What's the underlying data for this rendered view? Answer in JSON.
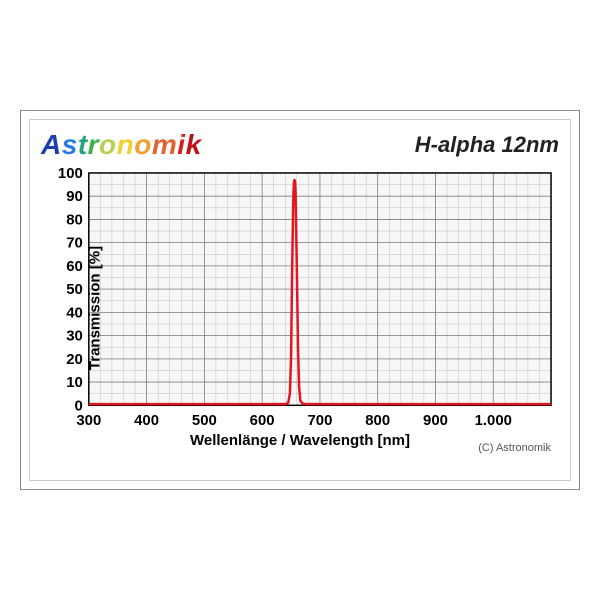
{
  "brand": {
    "text": "Astronomik",
    "letter_colors": [
      "#1a3db0",
      "#2a7de0",
      "#25a080",
      "#36b44a",
      "#b8d050",
      "#f2d030",
      "#f0a030",
      "#e86030",
      "#d92020",
      "#c01018",
      "#a00010"
    ]
  },
  "filter_name": "H-alpha 12nm",
  "copyright": "(C) Astronomik",
  "chart": {
    "type": "line",
    "xlabel": "Wellenlänge / Wavelength [nm]",
    "ylabel": "Transmission [%]",
    "xlim": [
      300,
      1100
    ],
    "ylim": [
      0,
      100
    ],
    "xticks": [
      300,
      400,
      500,
      600,
      700,
      800,
      900,
      1000
    ],
    "xtick_labels": [
      "300",
      "400",
      "500",
      "600",
      "700",
      "800",
      "900",
      "1.000"
    ],
    "yticks": [
      0,
      10,
      20,
      30,
      40,
      50,
      60,
      70,
      80,
      90,
      100
    ],
    "minor_x_step": 20,
    "minor_y_step": 5,
    "plot_bg": "#f7f7f7",
    "grid_major_color": "#808080",
    "grid_minor_color": "#bdbdbd",
    "axis_color": "#000000",
    "line_color": "#e3151f",
    "line_width": 2.5,
    "tick_fontsize": 15,
    "label_fontsize": 15,
    "series": {
      "x": [
        300,
        640,
        645,
        648,
        650,
        652,
        654,
        655,
        656,
        657,
        658,
        660,
        662,
        664,
        666,
        670,
        675,
        1100
      ],
      "y": [
        0.5,
        0.5,
        1,
        5,
        20,
        60,
        90,
        96,
        97,
        96,
        90,
        60,
        25,
        8,
        2,
        0.8,
        0.5,
        0.5
      ]
    }
  }
}
